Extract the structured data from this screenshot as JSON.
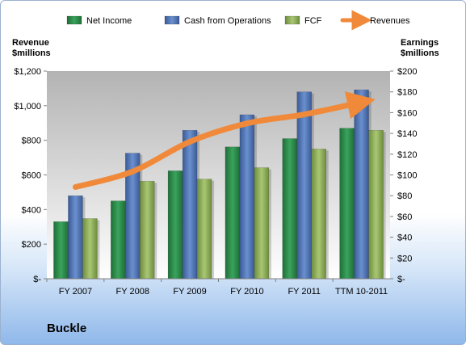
{
  "company": "Buckle",
  "chart_data": {
    "type": "bar",
    "categories": [
      "FY 2007",
      "FY 2008",
      "FY 2009",
      "FY 2010",
      "FY 2011",
      "TTM 10-2011"
    ],
    "series": [
      {
        "name": "Net Income",
        "axis": "right",
        "color": "#2e8b4b",
        "values": [
          55,
          75,
          104,
          127,
          135,
          145
        ]
      },
      {
        "name": "Cash from Operations",
        "axis": "right",
        "color": "#4f75b8",
        "values": [
          80,
          121,
          143,
          158,
          180,
          182
        ]
      },
      {
        "name": "FCF",
        "axis": "right",
        "color": "#8fb05a",
        "values": [
          58,
          94,
          96,
          107,
          125,
          143
        ]
      },
      {
        "name": "Revenues",
        "axis": "left",
        "type": "line",
        "color": "#f08a3a",
        "values": [
          530,
          620,
          792,
          898,
          950,
          1020
        ]
      }
    ],
    "left_axis": {
      "title": "Revenue\n$millions",
      "ylim": [
        0,
        1200
      ],
      "ticks": [
        0,
        200,
        400,
        600,
        800,
        1000,
        1200
      ],
      "tick_labels": [
        "$-",
        "$200",
        "$400",
        "$600",
        "$800",
        "$1,000",
        "$1,200"
      ]
    },
    "right_axis": {
      "title": "Earnings\n$millions",
      "ylim": [
        0,
        200
      ],
      "ticks": [
        0,
        20,
        40,
        60,
        80,
        100,
        120,
        140,
        160,
        180,
        200
      ],
      "tick_labels": [
        "$-",
        "$20",
        "$40",
        "$60",
        "$80",
        "$100",
        "$120",
        "$140",
        "$160",
        "$180",
        "$200"
      ]
    },
    "legend_position": "top",
    "grid": false,
    "plot_background": "gradient gray"
  }
}
